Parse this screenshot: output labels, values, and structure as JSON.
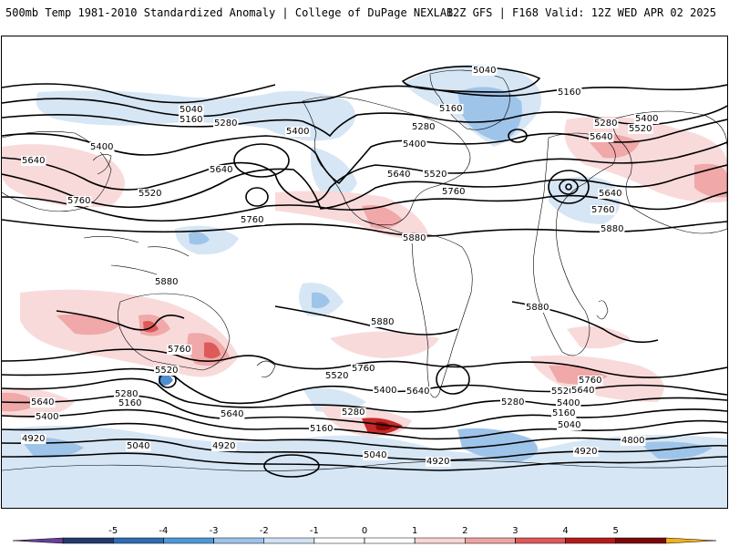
{
  "header": {
    "title": "500mb Temp 1981-2010 Standardized Anomaly | College of DuPage NEXLAB",
    "run_info": "12Z GFS | F168 Valid: 12Z WED APR 02 2025"
  },
  "contour_labels": [
    "4800",
    "4920",
    "5040",
    "5160",
    "5280",
    "5400",
    "5520",
    "5640",
    "5760",
    "5880"
  ],
  "colorbar": {
    "ticks": [
      "-5",
      "-4",
      "-3",
      "-2",
      "-1",
      "0",
      "1",
      "2",
      "3",
      "4",
      "5"
    ],
    "colors": [
      "#6a3d9a",
      "#233a6e",
      "#2f6cb3",
      "#4f98d8",
      "#9cc3ea",
      "#cfe1f4",
      "#ffffff",
      "#ffffff",
      "#f8d4d4",
      "#eea3a3",
      "#dd5a5a",
      "#b51b1b",
      "#7a0a0a",
      "#f2b21b"
    ]
  },
  "legend_colors": {
    "anomaly_cold_light": "#d6e6f5",
    "anomaly_cold_mid": "#9fc4ea",
    "anomaly_cold_strong": "#4f8fd0",
    "anomaly_warm_light": "#f9dada",
    "anomaly_warm_mid": "#f0a8a8",
    "anomaly_warm_strong": "#c82a2a",
    "anomaly_warm_extreme": "#8c0a0a"
  }
}
